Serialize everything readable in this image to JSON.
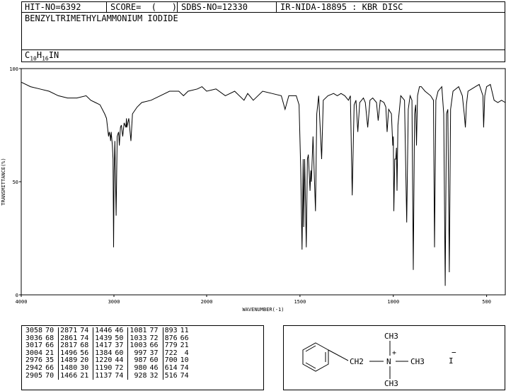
{
  "header": {
    "hit_no": "HIT-NO=6392",
    "score": "SCORE=  (   )",
    "sdbs_no": "SDBS-NO=12330",
    "ir_source": "IR-NIDA-18895 : KBR DISC",
    "compound": "BENZYLTRIMETHYLAMMONIUM IODIDE",
    "formula": "C10H16IN"
  },
  "chart_data": {
    "type": "line",
    "title": "",
    "xlabel": "WAVENUMBER(-1)",
    "ylabel": "TRANSMITTANCE(%)",
    "xlim": [
      4000,
      400
    ],
    "ylim": [
      0,
      100
    ],
    "x_ticks": [
      "4000",
      "3000",
      "2000",
      "1500",
      "1000",
      "500"
    ],
    "y_ticks": [
      "100",
      "50",
      "0"
    ],
    "grid": false,
    "series": [
      {
        "points": [
          [
            4000,
            94
          ],
          [
            3900,
            92
          ],
          [
            3800,
            91
          ],
          [
            3700,
            90
          ],
          [
            3600,
            88
          ],
          [
            3500,
            87
          ],
          [
            3400,
            87
          ],
          [
            3300,
            88
          ],
          [
            3250,
            86
          ],
          [
            3200,
            85
          ],
          [
            3150,
            84
          ],
          [
            3100,
            80
          ],
          [
            3080,
            78
          ],
          [
            3058,
            70
          ],
          [
            3050,
            72
          ],
          [
            3040,
            70
          ],
          [
            3036,
            68
          ],
          [
            3030,
            72
          ],
          [
            3017,
            66
          ],
          [
            3010,
            60
          ],
          [
            3004,
            21
          ],
          [
            2998,
            55
          ],
          [
            2990,
            68
          ],
          [
            2976,
            35
          ],
          [
            2965,
            70
          ],
          [
            2950,
            72
          ],
          [
            2942,
            66
          ],
          [
            2930,
            74
          ],
          [
            2920,
            75
          ],
          [
            2905,
            70
          ],
          [
            2890,
            76
          ],
          [
            2871,
            74
          ],
          [
            2865,
            78
          ],
          [
            2861,
            74
          ],
          [
            2840,
            78
          ],
          [
            2817,
            68
          ],
          [
            2800,
            80
          ],
          [
            2750,
            83
          ],
          [
            2700,
            85
          ],
          [
            2600,
            86
          ],
          [
            2500,
            88
          ],
          [
            2400,
            90
          ],
          [
            2300,
            90
          ],
          [
            2250,
            88
          ],
          [
            2200,
            90
          ],
          [
            2100,
            91
          ],
          [
            2050,
            92
          ],
          [
            2000,
            90
          ],
          [
            1950,
            91
          ],
          [
            1900,
            88
          ],
          [
            1850,
            90
          ],
          [
            1800,
            86
          ],
          [
            1780,
            89
          ],
          [
            1750,
            86
          ],
          [
            1700,
            90
          ],
          [
            1650,
            89
          ],
          [
            1600,
            88
          ],
          [
            1580,
            82
          ],
          [
            1560,
            88
          ],
          [
            1520,
            88
          ],
          [
            1505,
            84
          ],
          [
            1496,
            56
          ],
          [
            1489,
            20
          ],
          [
            1483,
            60
          ],
          [
            1480,
            30
          ],
          [
            1475,
            60
          ],
          [
            1466,
            21
          ],
          [
            1460,
            60
          ],
          [
            1455,
            62
          ],
          [
            1446,
            46
          ],
          [
            1442,
            55
          ],
          [
            1439,
            50
          ],
          [
            1430,
            70
          ],
          [
            1417,
            37
          ],
          [
            1410,
            80
          ],
          [
            1400,
            88
          ],
          [
            1384,
            60
          ],
          [
            1375,
            86
          ],
          [
            1350,
            88
          ],
          [
            1320,
            89
          ],
          [
            1300,
            88
          ],
          [
            1280,
            89
          ],
          [
            1260,
            88
          ],
          [
            1240,
            86
          ],
          [
            1230,
            88
          ],
          [
            1220,
            44
          ],
          [
            1210,
            84
          ],
          [
            1200,
            86
          ],
          [
            1190,
            72
          ],
          [
            1180,
            85
          ],
          [
            1160,
            87
          ],
          [
            1150,
            85
          ],
          [
            1137,
            74
          ],
          [
            1125,
            86
          ],
          [
            1110,
            87
          ],
          [
            1090,
            85
          ],
          [
            1081,
            77
          ],
          [
            1070,
            86
          ],
          [
            1050,
            85
          ],
          [
            1040,
            83
          ],
          [
            1033,
            72
          ],
          [
            1025,
            82
          ],
          [
            1010,
            80
          ],
          [
            1003,
            66
          ],
          [
            1000,
            70
          ],
          [
            997,
            37
          ],
          [
            992,
            60
          ],
          [
            987,
            60
          ],
          [
            983,
            65
          ],
          [
            980,
            46
          ],
          [
            975,
            75
          ],
          [
            960,
            88
          ],
          [
            940,
            86
          ],
          [
            928,
            32
          ],
          [
            920,
            82
          ],
          [
            910,
            88
          ],
          [
            900,
            86
          ],
          [
            893,
            11
          ],
          [
            886,
            80
          ],
          [
            880,
            84
          ],
          [
            876,
            66
          ],
          [
            870,
            88
          ],
          [
            860,
            92
          ],
          [
            850,
            92
          ],
          [
            830,
            90
          ],
          [
            800,
            88
          ],
          [
            785,
            86
          ],
          [
            779,
            21
          ],
          [
            772,
            86
          ],
          [
            760,
            90
          ],
          [
            740,
            92
          ],
          [
            730,
            80
          ],
          [
            722,
            4
          ],
          [
            715,
            80
          ],
          [
            708,
            82
          ],
          [
            700,
            10
          ],
          [
            693,
            82
          ],
          [
            680,
            90
          ],
          [
            650,
            92
          ],
          [
            630,
            88
          ],
          [
            620,
            80
          ],
          [
            614,
            74
          ],
          [
            608,
            84
          ],
          [
            600,
            90
          ],
          [
            560,
            92
          ],
          [
            540,
            93
          ],
          [
            520,
            88
          ],
          [
            516,
            74
          ],
          [
            510,
            88
          ],
          [
            500,
            92
          ],
          [
            480,
            93
          ],
          [
            460,
            86
          ],
          [
            440,
            85
          ],
          [
            420,
            86
          ],
          [
            400,
            85
          ]
        ]
      }
    ]
  },
  "peak_table": {
    "columns": [
      [
        [
          "3058",
          "70"
        ],
        [
          "3036",
          "68"
        ],
        [
          "3017",
          "66"
        ],
        [
          "3004",
          "21"
        ],
        [
          "2976",
          "35"
        ],
        [
          "2942",
          "66"
        ],
        [
          "2905",
          "70"
        ]
      ],
      [
        [
          "2871",
          "74"
        ],
        [
          "2861",
          "74"
        ],
        [
          "2817",
          "68"
        ],
        [
          "1496",
          "56"
        ],
        [
          "1489",
          "20"
        ],
        [
          "1480",
          "30"
        ],
        [
          "1466",
          "21"
        ]
      ],
      [
        [
          "1446",
          "46"
        ],
        [
          "1439",
          "50"
        ],
        [
          "1417",
          "37"
        ],
        [
          "1384",
          "60"
        ],
        [
          "1220",
          "44"
        ],
        [
          "1190",
          "72"
        ],
        [
          "1137",
          "74"
        ]
      ],
      [
        [
          "1081",
          "77"
        ],
        [
          "1033",
          "72"
        ],
        [
          "1003",
          "66"
        ],
        [
          "997",
          "37"
        ],
        [
          "987",
          "60"
        ],
        [
          "980",
          "46"
        ],
        [
          "928",
          "32"
        ]
      ],
      [
        [
          "893",
          "11"
        ],
        [
          "876",
          "66"
        ],
        [
          "779",
          "21"
        ],
        [
          "722",
          "4"
        ],
        [
          "700",
          "10"
        ],
        [
          "614",
          "74"
        ],
        [
          "516",
          "74"
        ]
      ]
    ]
  },
  "structure": {
    "ch3_top": "CH3",
    "ch2_label": "CH2",
    "nitrogen": "N",
    "plus": "+",
    "ch3_right": "CH3",
    "ch3_bottom": "CH3",
    "iodide": "I",
    "minus": "−"
  }
}
